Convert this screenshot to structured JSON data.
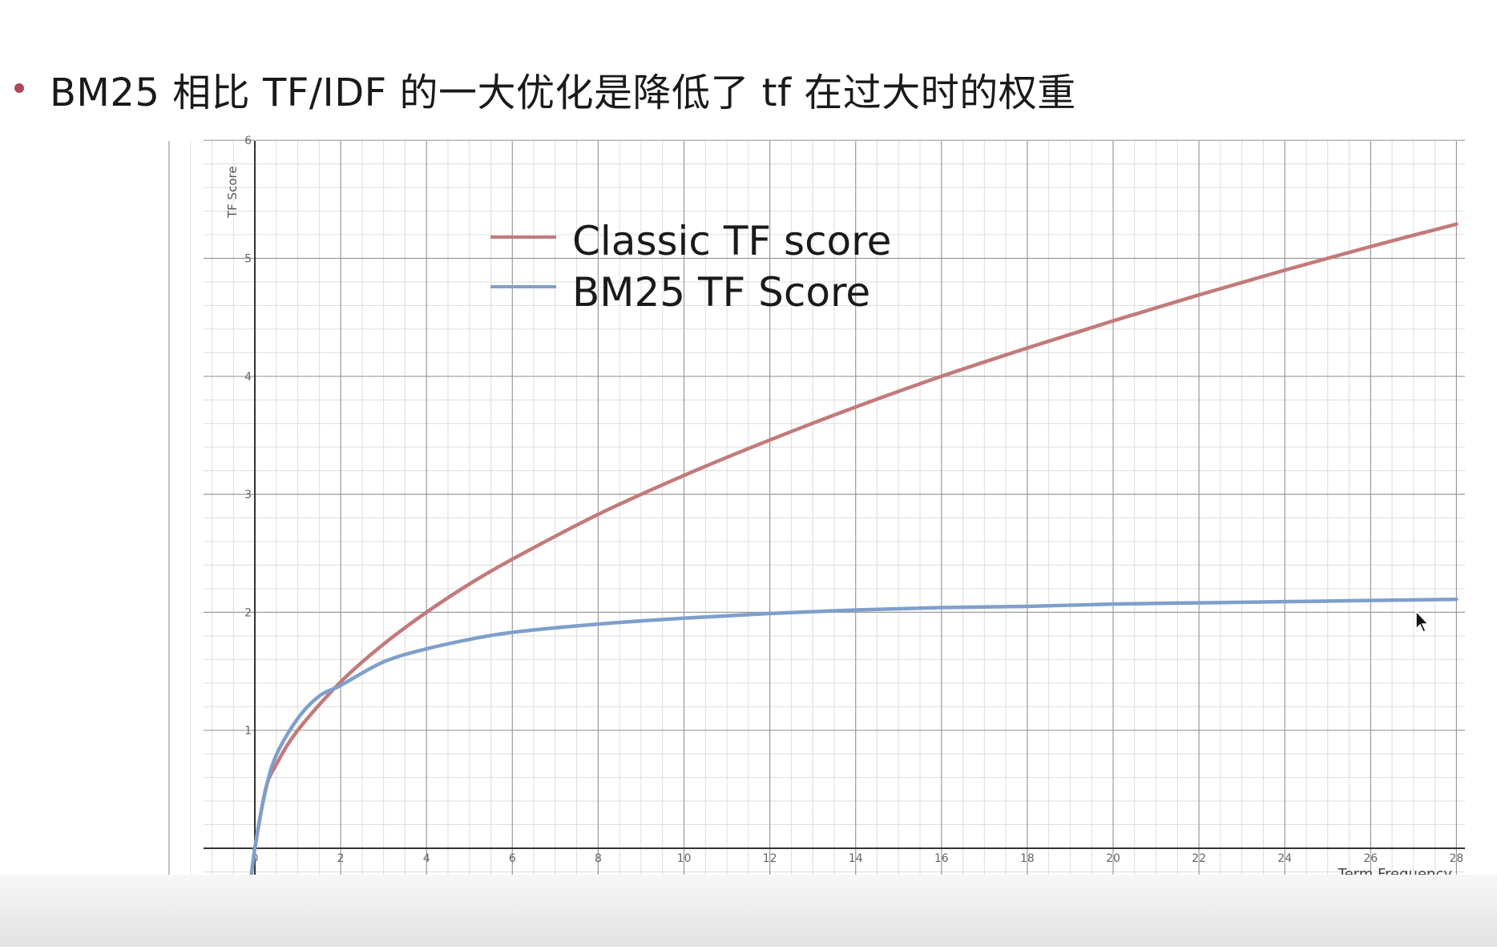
{
  "slide": {
    "bullet_text": "BM25 相比 TF/IDF  的一大优化是降低了 tf 在过大时的权重"
  },
  "colors": {
    "classic": "#c27a7b",
    "bm25": "#7f9fcb",
    "bullet": "#b0485c"
  },
  "icons": {
    "cursor": "mouse-pointer-icon"
  },
  "chart_data": {
    "type": "line",
    "ylabel": "TF Score",
    "xlabel": "Term Frequency",
    "xlim": [
      -2.4,
      28.2
    ],
    "ylim": [
      -0.5,
      6
    ],
    "grid": true,
    "legend_placement": "top-left",
    "x_ticks": [
      "0",
      "2",
      "4",
      "6",
      "8",
      "10",
      "12",
      "14",
      "16",
      "18",
      "20",
      "22",
      "24",
      "26",
      "28"
    ],
    "y_ticks": [
      "1",
      "2",
      "3",
      "4",
      "5",
      "6"
    ],
    "series": [
      {
        "name": "Classic TF score",
        "color": "#c27a7b",
        "x": [
          0,
          0.25,
          0.5,
          1,
          2,
          3,
          4,
          5,
          6,
          8,
          10,
          12,
          14,
          16,
          18,
          20,
          22,
          24,
          26,
          28
        ],
        "y": [
          0,
          0.5,
          0.71,
          1.0,
          1.41,
          1.73,
          2.0,
          2.24,
          2.45,
          2.83,
          3.16,
          3.46,
          3.74,
          4.0,
          4.24,
          4.47,
          4.69,
          4.9,
          5.1,
          5.29
        ]
      },
      {
        "name": "BM25 TF Score",
        "color": "#7f9fcb",
        "x": [
          -0.15,
          0,
          0.25,
          0.5,
          1,
          1.5,
          2,
          3,
          4,
          5,
          6,
          8,
          10,
          12,
          14,
          16,
          18,
          20,
          22,
          24,
          26,
          28
        ],
        "y": [
          -0.45,
          0,
          0.49,
          0.79,
          1.1,
          1.29,
          1.38,
          1.58,
          1.69,
          1.77,
          1.83,
          1.9,
          1.95,
          1.99,
          2.02,
          2.04,
          2.05,
          2.07,
          2.08,
          2.09,
          2.1,
          2.11
        ]
      }
    ]
  }
}
